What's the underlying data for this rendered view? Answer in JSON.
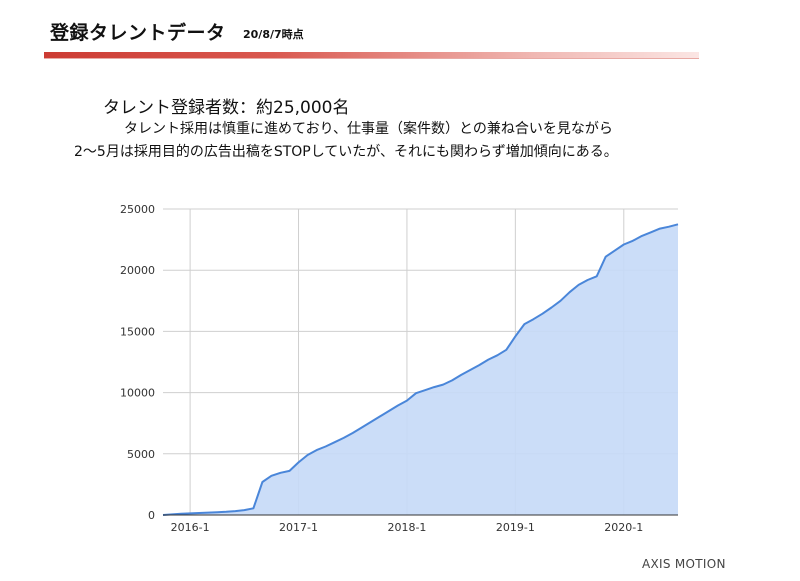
{
  "header": {
    "title": "登録タレントデータ",
    "date": "20/8/7時点"
  },
  "text": {
    "headline": "タレント登録者数：約25,000名",
    "line1": "タレント採用は慎重に進めており、仕事量（案件数）との兼ね合いを見ながら",
    "line2": "2～5月は採用目的の広告出稿をSTOPしていたが、それにも関わらず増加傾向にある。"
  },
  "logo": "AXIS MOTION",
  "colors": {
    "accent_red": "#cc3b33",
    "line": "#4a86d9",
    "fill": "#c5d9f7"
  },
  "chart_data": {
    "type": "area",
    "title": "",
    "xlabel": "",
    "ylabel": "",
    "ylim": [
      0,
      25000
    ],
    "yticks": [
      "0",
      "5000",
      "10000",
      "15000",
      "20000",
      "25000"
    ],
    "xticks": [
      {
        "label": "2016-1",
        "x": "2016-01"
      },
      {
        "label": "2017-1",
        "x": "2017-01"
      },
      {
        "label": "2018-1",
        "x": "2018-01"
      },
      {
        "label": "2019-1",
        "x": "2019-01"
      },
      {
        "label": "2020-1",
        "x": "2020-01"
      }
    ],
    "grid": true,
    "series": [
      {
        "x": [
          "2015-10",
          "2015-11",
          "2015-12",
          "2016-01",
          "2016-02",
          "2016-03",
          "2016-04",
          "2016-05",
          "2016-06",
          "2016-07",
          "2016-08",
          "2016-09",
          "2016-10",
          "2016-11",
          "2016-12",
          "2017-01",
          "2017-02",
          "2017-03",
          "2017-04",
          "2017-05",
          "2017-06",
          "2017-07",
          "2017-08",
          "2017-09",
          "2017-10",
          "2017-11",
          "2017-12",
          "2018-01",
          "2018-02",
          "2018-03",
          "2018-04",
          "2018-05",
          "2018-06",
          "2018-07",
          "2018-08",
          "2018-09",
          "2018-10",
          "2018-11",
          "2018-12",
          "2019-01",
          "2019-02",
          "2019-03",
          "2019-04",
          "2019-05",
          "2019-06",
          "2019-07",
          "2019-08",
          "2019-09",
          "2019-10",
          "2019-11",
          "2019-12",
          "2020-01",
          "2020-02",
          "2020-03",
          "2020-04",
          "2020-05",
          "2020-06",
          "2020-07"
        ],
        "values": [
          0,
          50,
          100,
          130,
          160,
          200,
          230,
          260,
          320,
          400,
          550,
          2700,
          3200,
          3450,
          3600,
          4300,
          4900,
          5300,
          5600,
          5950,
          6300,
          6700,
          7150,
          7600,
          8050,
          8500,
          8950,
          9350,
          9950,
          10200,
          10450,
          10650,
          11000,
          11450,
          11850,
          12250,
          12700,
          13050,
          13500,
          14600,
          15600,
          16000,
          16450,
          16950,
          17500,
          18200,
          18800,
          19200,
          19500,
          21100,
          21600,
          22100,
          22400,
          22800,
          23100,
          23400,
          23550,
          23750
        ]
      }
    ]
  }
}
